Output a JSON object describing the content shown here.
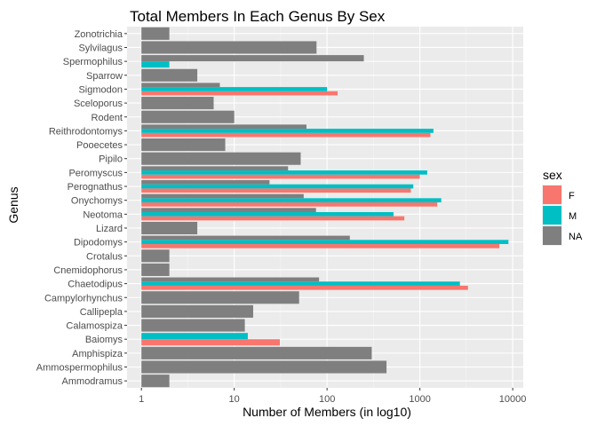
{
  "chart_data": {
    "type": "bar",
    "orientation": "horizontal",
    "title": "Total Members In Each Genus By Sex",
    "xlabel": "Number of Members (in log10)",
    "ylabel": "Genus",
    "x_scale": "log10",
    "xlim": [
      0.7,
      13000
    ],
    "x_ticks": [
      1,
      10,
      100,
      1000,
      10000
    ],
    "x_tick_labels": [
      "1",
      "10",
      "100",
      "1000",
      "10000"
    ],
    "grid": true,
    "legend": {
      "title": "sex",
      "position": "right"
    },
    "series_order_bottom_to_top": [
      "F",
      "M",
      "NA"
    ],
    "series": [
      {
        "name": "F",
        "color": "#F8766D"
      },
      {
        "name": "M",
        "color": "#00BFC4"
      },
      {
        "name": "NA",
        "color": "#7F7F7F"
      }
    ],
    "categories": [
      {
        "genus": "Ammodramus",
        "values": {
          "NA": 2
        }
      },
      {
        "genus": "Ammospermophilus",
        "values": {
          "NA": 437
        }
      },
      {
        "genus": "Amphispiza",
        "values": {
          "NA": 303
        }
      },
      {
        "genus": "Baiomys",
        "values": {
          "F": 31,
          "M": 14
        }
      },
      {
        "genus": "Calamospiza",
        "values": {
          "NA": 13
        }
      },
      {
        "genus": "Callipepla",
        "values": {
          "NA": 16
        }
      },
      {
        "genus": "Campylorhynchus",
        "values": {
          "NA": 50
        }
      },
      {
        "genus": "Chaetodipus",
        "values": {
          "F": 3300,
          "M": 2700,
          "NA": 82
        }
      },
      {
        "genus": "Cnemidophorus",
        "values": {
          "NA": 2
        }
      },
      {
        "genus": "Crotalus",
        "values": {
          "NA": 2
        }
      },
      {
        "genus": "Dipodomys",
        "values": {
          "F": 7200,
          "M": 9000,
          "NA": 176
        }
      },
      {
        "genus": "Lizard",
        "values": {
          "NA": 4
        }
      },
      {
        "genus": "Neotoma",
        "values": {
          "F": 680,
          "M": 520,
          "NA": 76
        }
      },
      {
        "genus": "Onychomys",
        "values": {
          "F": 1540,
          "M": 1700,
          "NA": 56
        }
      },
      {
        "genus": "Perognathus",
        "values": {
          "F": 800,
          "M": 850,
          "NA": 24
        }
      },
      {
        "genus": "Peromyscus",
        "values": {
          "F": 1000,
          "M": 1200,
          "NA": 38
        }
      },
      {
        "genus": "Pipilo",
        "values": {
          "NA": 52
        }
      },
      {
        "genus": "Pooecetes",
        "values": {
          "NA": 8
        }
      },
      {
        "genus": "Reithrodontomys",
        "values": {
          "F": 1300,
          "M": 1400,
          "NA": 60
        }
      },
      {
        "genus": "Rodent",
        "values": {
          "NA": 10
        }
      },
      {
        "genus": "Sceloporus",
        "values": {
          "NA": 6
        }
      },
      {
        "genus": "Sigmodon",
        "values": {
          "F": 130,
          "M": 100,
          "NA": 7
        }
      },
      {
        "genus": "Sparrow",
        "values": {
          "NA": 4
        }
      },
      {
        "genus": "Spermophilus",
        "values": {
          "M": 2,
          "NA": 249
        }
      },
      {
        "genus": "Sylvilagus",
        "values": {
          "NA": 77
        }
      },
      {
        "genus": "Zonotrichia",
        "values": {
          "NA": 2
        }
      }
    ]
  }
}
